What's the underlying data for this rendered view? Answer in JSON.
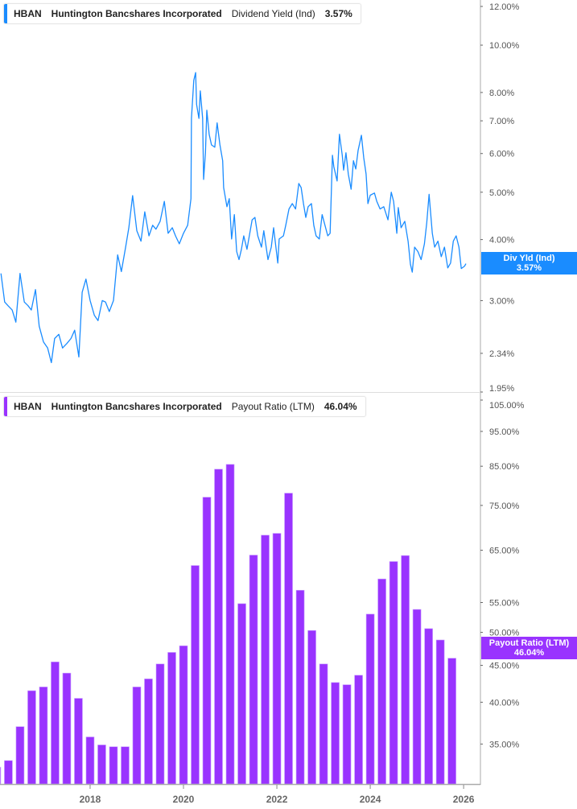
{
  "colors": {
    "yield_line": "#1a8cff",
    "payout_bar": "#9933ff",
    "axis": "#999999"
  },
  "top_legend": {
    "ticker": "HBAN",
    "company": "Huntington Bancshares Incorporated",
    "metric": "Dividend Yield (Ind)",
    "value": "3.57%"
  },
  "bottom_legend": {
    "ticker": "HBAN",
    "company": "Huntington Bancshares Incorporated",
    "metric": "Payout Ratio (LTM)",
    "value": "46.04%"
  },
  "top_tag": {
    "label": "Div Yld (Ind)",
    "value": "3.57%"
  },
  "bottom_tag": {
    "label": "Payout Ratio (LTM)",
    "value": "46.04%"
  },
  "chart_data": [
    {
      "type": "line",
      "title": "",
      "series": [
        {
          "name": "Dividend Yield (Ind)",
          "unit": "%",
          "x_units": "year",
          "points": [
            [
              2016.09,
              3.41
            ],
            [
              2016.17,
              2.98
            ],
            [
              2016.24,
              2.93
            ],
            [
              2016.33,
              2.87
            ],
            [
              2016.41,
              2.71
            ],
            [
              2016.5,
              3.41
            ],
            [
              2016.59,
              2.98
            ],
            [
              2016.67,
              2.93
            ],
            [
              2016.74,
              2.87
            ],
            [
              2016.83,
              3.16
            ],
            [
              2016.91,
              2.66
            ],
            [
              2017.0,
              2.47
            ],
            [
              2017.09,
              2.4
            ],
            [
              2017.17,
              2.24
            ],
            [
              2017.24,
              2.51
            ],
            [
              2017.33,
              2.56
            ],
            [
              2017.41,
              2.4
            ],
            [
              2017.5,
              2.45
            ],
            [
              2017.59,
              2.51
            ],
            [
              2017.67,
              2.61
            ],
            [
              2017.76,
              2.3
            ],
            [
              2017.83,
              3.12
            ],
            [
              2017.91,
              3.32
            ],
            [
              2018.0,
              3.0
            ],
            [
              2018.09,
              2.8
            ],
            [
              2018.17,
              2.73
            ],
            [
              2018.26,
              3.0
            ],
            [
              2018.33,
              2.98
            ],
            [
              2018.41,
              2.85
            ],
            [
              2018.5,
              3.0
            ],
            [
              2018.59,
              3.72
            ],
            [
              2018.67,
              3.44
            ],
            [
              2018.76,
              3.86
            ],
            [
              2018.83,
              4.23
            ],
            [
              2018.91,
              4.92
            ],
            [
              2019.0,
              4.17
            ],
            [
              2019.09,
              3.97
            ],
            [
              2019.17,
              4.56
            ],
            [
              2019.26,
              4.07
            ],
            [
              2019.34,
              4.28
            ],
            [
              2019.41,
              4.2
            ],
            [
              2019.5,
              4.36
            ],
            [
              2019.59,
              4.79
            ],
            [
              2019.67,
              4.12
            ],
            [
              2019.76,
              4.23
            ],
            [
              2019.83,
              4.07
            ],
            [
              2019.91,
              3.92
            ],
            [
              2020.0,
              4.12
            ],
            [
              2020.09,
              4.28
            ],
            [
              2020.16,
              4.85
            ],
            [
              2020.17,
              7.08
            ],
            [
              2020.22,
              8.47
            ],
            [
              2020.26,
              8.79
            ],
            [
              2020.28,
              7.56
            ],
            [
              2020.33,
              7.08
            ],
            [
              2020.36,
              8.06
            ],
            [
              2020.41,
              7.08
            ],
            [
              2020.43,
              5.31
            ],
            [
              2020.47,
              6.02
            ],
            [
              2020.5,
              7.36
            ],
            [
              2020.55,
              6.57
            ],
            [
              2020.6,
              6.25
            ],
            [
              2020.67,
              6.18
            ],
            [
              2020.72,
              6.93
            ],
            [
              2020.78,
              6.25
            ],
            [
              2020.84,
              5.8
            ],
            [
              2020.86,
              5.11
            ],
            [
              2020.93,
              4.67
            ],
            [
              2020.98,
              4.85
            ],
            [
              2021.03,
              4.01
            ],
            [
              2021.09,
              4.5
            ],
            [
              2021.14,
              3.78
            ],
            [
              2021.19,
              3.64
            ],
            [
              2021.24,
              3.82
            ],
            [
              2021.29,
              4.07
            ],
            [
              2021.36,
              3.82
            ],
            [
              2021.47,
              4.39
            ],
            [
              2021.53,
              4.44
            ],
            [
              2021.59,
              4.07
            ],
            [
              2021.67,
              3.86
            ],
            [
              2021.72,
              4.17
            ],
            [
              2021.81,
              3.64
            ],
            [
              2021.88,
              3.86
            ],
            [
              2021.93,
              4.23
            ],
            [
              2022.02,
              3.58
            ],
            [
              2022.05,
              4.01
            ],
            [
              2022.14,
              4.07
            ],
            [
              2022.19,
              4.28
            ],
            [
              2022.26,
              4.62
            ],
            [
              2022.33,
              4.74
            ],
            [
              2022.4,
              4.62
            ],
            [
              2022.47,
              5.21
            ],
            [
              2022.52,
              5.11
            ],
            [
              2022.57,
              4.74
            ],
            [
              2022.62,
              4.44
            ],
            [
              2022.67,
              4.67
            ],
            [
              2022.74,
              4.74
            ],
            [
              2022.79,
              4.28
            ],
            [
              2022.84,
              4.07
            ],
            [
              2022.91,
              4.01
            ],
            [
              2022.97,
              4.5
            ],
            [
              2023.03,
              4.28
            ],
            [
              2023.09,
              4.07
            ],
            [
              2023.14,
              4.12
            ],
            [
              2023.19,
              5.95
            ],
            [
              2023.22,
              5.64
            ],
            [
              2023.29,
              5.27
            ],
            [
              2023.34,
              6.57
            ],
            [
              2023.4,
              5.95
            ],
            [
              2023.43,
              5.55
            ],
            [
              2023.48,
              6.02
            ],
            [
              2023.53,
              5.45
            ],
            [
              2023.59,
              5.07
            ],
            [
              2023.64,
              5.8
            ],
            [
              2023.69,
              5.58
            ],
            [
              2023.74,
              6.09
            ],
            [
              2023.81,
              6.54
            ],
            [
              2023.86,
              5.88
            ],
            [
              2023.91,
              5.45
            ],
            [
              2023.95,
              4.74
            ],
            [
              2024.0,
              4.93
            ],
            [
              2024.09,
              4.98
            ],
            [
              2024.14,
              4.79
            ],
            [
              2024.21,
              4.62
            ],
            [
              2024.29,
              4.67
            ],
            [
              2024.38,
              4.39
            ],
            [
              2024.45,
              5.0
            ],
            [
              2024.5,
              4.79
            ],
            [
              2024.57,
              4.12
            ],
            [
              2024.6,
              4.65
            ],
            [
              2024.66,
              4.23
            ],
            [
              2024.74,
              4.36
            ],
            [
              2024.81,
              3.97
            ],
            [
              2024.86,
              3.56
            ],
            [
              2024.9,
              3.43
            ],
            [
              2024.95,
              3.86
            ],
            [
              2025.02,
              3.78
            ],
            [
              2025.09,
              3.64
            ],
            [
              2025.16,
              3.92
            ],
            [
              2025.21,
              4.33
            ],
            [
              2025.26,
              4.95
            ],
            [
              2025.33,
              4.12
            ],
            [
              2025.38,
              3.86
            ],
            [
              2025.45,
              3.97
            ],
            [
              2025.52,
              3.69
            ],
            [
              2025.59,
              3.86
            ],
            [
              2025.66,
              3.5
            ],
            [
              2025.72,
              3.58
            ],
            [
              2025.78,
              3.97
            ],
            [
              2025.84,
              4.07
            ],
            [
              2025.9,
              3.86
            ],
            [
              2025.95,
              3.49
            ],
            [
              2026.02,
              3.53
            ],
            [
              2026.05,
              3.57
            ]
          ]
        }
      ],
      "y_scale": "log",
      "ylim": [
        1.95,
        12.37
      ],
      "xlim": [
        2016.07,
        2026.36
      ],
      "y_ticks": [
        "12.00%",
        "10.00%",
        "8.00%",
        "7.00%",
        "6.00%",
        "5.00%",
        "4.00%",
        "3.00%",
        "2.34%",
        "1.95%"
      ],
      "y_tick_values": [
        12,
        10,
        8,
        7,
        6,
        5,
        4,
        3,
        2.34,
        1.95
      ],
      "grid": false,
      "legend": "top-left"
    },
    {
      "type": "bar",
      "title": "",
      "series": [
        {
          "name": "Payout Ratio (LTM)",
          "unit": "%",
          "dates": [
            "2015-12",
            "2016-03",
            "2016-06",
            "2016-09",
            "2016-12",
            "2017-03",
            "2017-06",
            "2017-09",
            "2017-12",
            "2018-03",
            "2018-06",
            "2018-09",
            "2018-12",
            "2019-03",
            "2019-06",
            "2019-09",
            "2019-12",
            "2020-03",
            "2020-06",
            "2020-09",
            "2020-12",
            "2021-03",
            "2021-06",
            "2021-09",
            "2021-12",
            "2022-03",
            "2022-06",
            "2022-09",
            "2022-12",
            "2023-03",
            "2023-06",
            "2023-09",
            "2023-12",
            "2024-03",
            "2024-06",
            "2024-09",
            "2024-12",
            "2025-03",
            "2025-06",
            "2025-09"
          ],
          "values": [
            32.5,
            33.2,
            37.0,
            41.5,
            42.0,
            45.5,
            43.9,
            40.5,
            35.8,
            34.9,
            34.7,
            34.7,
            42.0,
            43.1,
            45.2,
            46.9,
            47.9,
            61.9,
            77.0,
            84.2,
            85.5,
            54.8,
            64.0,
            68.2,
            68.6,
            78.0,
            57.2,
            50.3,
            45.2,
            42.6,
            42.3,
            43.6,
            53.0,
            59.3,
            62.7,
            63.9,
            53.8,
            50.6,
            48.8,
            46.04
          ]
        }
      ],
      "y_scale": "log",
      "ylim": [
        30.8,
        105
      ],
      "xlim": [
        2016.07,
        2026.36
      ],
      "y_ticks": [
        "105.00%",
        "95.00%",
        "85.00%",
        "75.00%",
        "65.00%",
        "55.00%",
        "50.00%",
        "45.00%",
        "40.00%",
        "35.00%"
      ],
      "y_tick_values": [
        105,
        95,
        85,
        75,
        65,
        55,
        50,
        45,
        40,
        35
      ],
      "x_ticks": [
        "2018",
        "2020",
        "2022",
        "2024",
        "2026"
      ],
      "x_tick_values": [
        2018,
        2020,
        2022,
        2024,
        2026
      ],
      "grid": false,
      "legend": "top-left"
    }
  ]
}
